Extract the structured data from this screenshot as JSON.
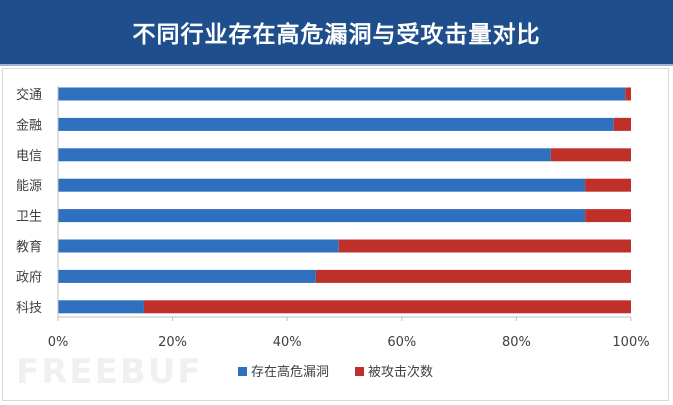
{
  "title": "不同行业存在高危漏洞与受攻击量对比",
  "watermark": "FREEBUF",
  "chart_data": {
    "type": "bar",
    "orientation": "horizontal",
    "stacked": "percent",
    "categories": [
      "交通",
      "金融",
      "电信",
      "能源",
      "卫生",
      "教育",
      "政府",
      "科技"
    ],
    "series": [
      {
        "name": "存在高危漏洞",
        "color": "#2e6fbe",
        "values": [
          99,
          97,
          86,
          92,
          92,
          49,
          45,
          15
        ]
      },
      {
        "name": "被攻击次数",
        "color": "#c0302b",
        "values": [
          1,
          3,
          14,
          8,
          8,
          51,
          55,
          85
        ]
      }
    ],
    "xticks": [
      "0%",
      "20%",
      "40%",
      "60%",
      "80%",
      "100%"
    ],
    "xlim": [
      0,
      100
    ],
    "grid": false,
    "legend": "bottom"
  }
}
